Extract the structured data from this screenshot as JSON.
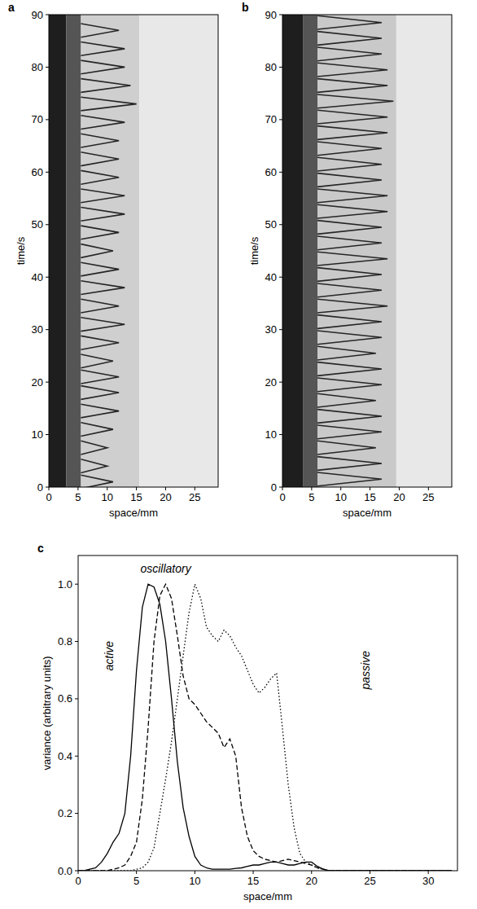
{
  "chart_data": [
    {
      "type": "image",
      "panel_label": "a",
      "xlabel": "space/mm",
      "ylabel": "time/s",
      "xlim": [
        0,
        29
      ],
      "ylim": [
        0,
        90
      ],
      "xticks": [
        0,
        5,
        10,
        15,
        20,
        25
      ],
      "yticks": [
        0,
        10,
        20,
        30,
        40,
        50,
        60,
        70,
        80,
        90
      ],
      "regions": [
        {
          "x": [
            0,
            3
          ],
          "color": "#1e1e1e"
        },
        {
          "x": [
            3,
            5.5
          ],
          "color": "#555555"
        },
        {
          "x": [
            5.5,
            15.5
          ],
          "color": "#cfcfcf"
        },
        {
          "x": [
            15.5,
            29
          ],
          "color": "#e8e8e8"
        }
      ],
      "waves": {
        "t": [
          1,
          4,
          7.5,
          11,
          14.5,
          18,
          21,
          24,
          27.5,
          31,
          34.5,
          38,
          41.5,
          45,
          48.5,
          52,
          55.5,
          59,
          62.5,
          66,
          69.5,
          73,
          76.5,
          80,
          83.5,
          87
        ],
        "reach": [
          11,
          10,
          10,
          11,
          12,
          12,
          12,
          11,
          12,
          13,
          12,
          13,
          12,
          11,
          12,
          13,
          13,
          12,
          12,
          12,
          13,
          15,
          14,
          13,
          13,
          12
        ]
      },
      "color": "#262626"
    },
    {
      "type": "image",
      "panel_label": "b",
      "xlabel": "space/mm",
      "ylabel": "time/s",
      "xlim": [
        0,
        29
      ],
      "ylim": [
        0,
        90
      ],
      "xticks": [
        0,
        5,
        10,
        15,
        20,
        25
      ],
      "yticks": [
        0,
        10,
        20,
        30,
        40,
        50,
        60,
        70,
        80,
        90
      ],
      "regions": [
        {
          "x": [
            0,
            3.5
          ],
          "color": "#1e1e1e"
        },
        {
          "x": [
            3.5,
            6
          ],
          "color": "#555555"
        },
        {
          "x": [
            6,
            19.5
          ],
          "color": "#c9c9c9"
        },
        {
          "x": [
            19.5,
            29
          ],
          "color": "#e8e8e8"
        }
      ],
      "waves": {
        "t": [
          1.5,
          4.5,
          7.5,
          10.5,
          13.5,
          16.5,
          19.5,
          22.5,
          25.5,
          28.5,
          31.5,
          34.5,
          37.5,
          40.5,
          43.5,
          46.5,
          49.5,
          52.5,
          55.5,
          58.5,
          61.5,
          64.5,
          67.5,
          70.5,
          73.5,
          76.5,
          79.5,
          82.5,
          85.5,
          88.5
        ],
        "reach": [
          17,
          17,
          16,
          17,
          17,
          16,
          17,
          17,
          16,
          17,
          17,
          18,
          17,
          17,
          18,
          17,
          17,
          18,
          18,
          17,
          17,
          17,
          18,
          18,
          19,
          18,
          18,
          17,
          17,
          17
        ]
      },
      "color": "#262626"
    },
    {
      "type": "line",
      "panel_label": "c",
      "xlabel": "space/mm",
      "ylabel": "variance (arbitrary units)",
      "xlim": [
        0,
        32.5
      ],
      "ylim": [
        0,
        1.1
      ],
      "xticks": [
        0,
        5,
        10,
        15,
        20,
        25,
        30
      ],
      "yticks": [
        {
          "value": 0,
          "label": "0.0"
        },
        {
          "value": 0.2,
          "label": "0.2"
        },
        {
          "value": 0.4,
          "label": "0.4"
        },
        {
          "value": 0.6,
          "label": "0.6"
        },
        {
          "value": 0.8,
          "label": "0.8"
        },
        {
          "value": 1,
          "label": "1.0"
        }
      ],
      "x": [
        0,
        0.5,
        1,
        1.5,
        2,
        2.5,
        3,
        3.5,
        4,
        4.5,
        5,
        5.5,
        6,
        6.5,
        7,
        7.5,
        8,
        8.5,
        9,
        9.5,
        10,
        10.5,
        11,
        11.5,
        12,
        12.5,
        13,
        13.5,
        14,
        14.5,
        15,
        15.5,
        16,
        16.5,
        17,
        17.5,
        18,
        18.5,
        19,
        19.5,
        20,
        20.5,
        21,
        21.5,
        22,
        32
      ],
      "series": [
        {
          "color": "#000000",
          "line_style": "solid",
          "values": [
            0,
            0,
            0.005,
            0.01,
            0.03,
            0.06,
            0.1,
            0.13,
            0.2,
            0.4,
            0.7,
            0.92,
            1.0,
            0.99,
            0.93,
            0.8,
            0.6,
            0.38,
            0.22,
            0.12,
            0.05,
            0.02,
            0.01,
            0.005,
            0.005,
            0.005,
            0.005,
            0.008,
            0.01,
            0.015,
            0.02,
            0.02,
            0.025,
            0.03,
            0.03,
            0.025,
            0.02,
            0.02,
            0.025,
            0.03,
            0.03,
            0.015,
            0.005,
            0,
            0,
            0
          ]
        },
        {
          "color": "#000000",
          "line_style": "dashed",
          "values": [
            0,
            0,
            0,
            0,
            0,
            0,
            0.005,
            0.01,
            0.02,
            0.05,
            0.1,
            0.25,
            0.5,
            0.8,
            0.96,
            1.0,
            0.95,
            0.82,
            0.68,
            0.6,
            0.58,
            0.55,
            0.52,
            0.5,
            0.48,
            0.43,
            0.46,
            0.4,
            0.22,
            0.12,
            0.07,
            0.05,
            0.04,
            0.035,
            0.03,
            0.035,
            0.04,
            0.035,
            0.03,
            0.025,
            0.02,
            0.01,
            0.005,
            0,
            0,
            0
          ]
        },
        {
          "color": "#000000",
          "line_style": "dotted",
          "values": [
            0,
            0,
            0,
            0,
            0,
            0,
            0,
            0,
            0,
            0,
            0.005,
            0.01,
            0.03,
            0.08,
            0.2,
            0.32,
            0.45,
            0.6,
            0.75,
            0.9,
            1.0,
            0.95,
            0.85,
            0.82,
            0.8,
            0.84,
            0.82,
            0.78,
            0.75,
            0.7,
            0.65,
            0.62,
            0.64,
            0.67,
            0.69,
            0.5,
            0.3,
            0.15,
            0.06,
            0.03,
            0.02,
            0.01,
            0.005,
            0,
            0,
            0
          ]
        }
      ],
      "annotations": [
        {
          "text": "active",
          "x": 3,
          "y": 0.75
        },
        {
          "text": "oscillatory",
          "x": 7.5,
          "y": 1.04
        },
        {
          "text": "passive",
          "x": 25,
          "y": 0.7
        }
      ]
    }
  ]
}
